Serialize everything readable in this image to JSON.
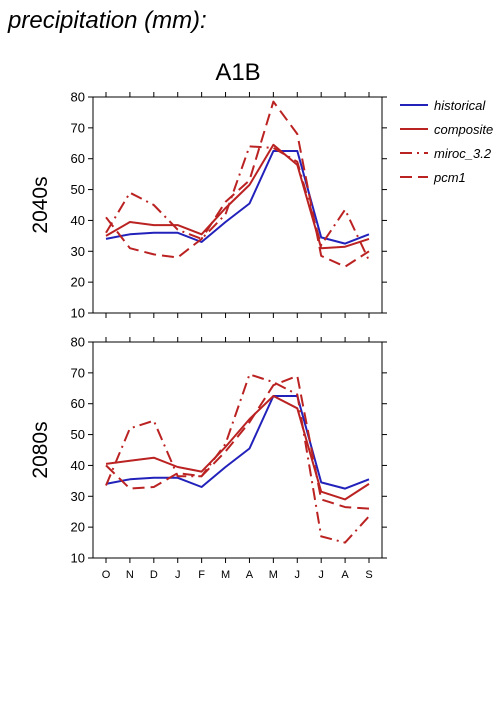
{
  "header": {
    "title": "precipitation (mm):",
    "scenario": "A1B"
  },
  "chart_data": {
    "type": "line",
    "categories": [
      "O",
      "N",
      "D",
      "J",
      "F",
      "M",
      "A",
      "M",
      "J",
      "J",
      "A",
      "S"
    ],
    "ylim": [
      10,
      80
    ],
    "yticks": [
      10,
      20,
      30,
      40,
      50,
      60,
      70,
      80
    ],
    "legend_position": "right",
    "styles": {
      "historical": {
        "color": "#2222bb",
        "dash": "none"
      },
      "composite": {
        "color": "#bb2222",
        "dash": "none"
      },
      "miroc_3.2": {
        "color": "#bb2222",
        "dash": "12 5 2 5"
      },
      "pcm1": {
        "color": "#bb2222",
        "dash": "12 6"
      }
    },
    "legend": [
      {
        "key": "historical",
        "label": "historical"
      },
      {
        "key": "composite",
        "label": "composite"
      },
      {
        "key": "miroc_3.2",
        "label": "miroc_3.2"
      },
      {
        "key": "pcm1",
        "label": "pcm1"
      }
    ],
    "panels": [
      {
        "label": "2040s",
        "series": [
          {
            "key": "historical",
            "values": [
              34,
              35.5,
              36,
              36,
              33,
              39.5,
              45.5,
              62.5,
              62.5,
              34.5,
              32.5,
              35.5
            ]
          },
          {
            "key": "composite",
            "values": [
              35,
              39.5,
              38.5,
              38.5,
              35.5,
              44,
              51.5,
              64.5,
              58,
              31,
              31.5,
              34
            ]
          },
          {
            "key": "miroc_3.2",
            "values": [
              36,
              49,
              45,
              37,
              34,
              42,
              64,
              63.5,
              59,
              32,
              43.5,
              27
            ]
          },
          {
            "key": "pcm1",
            "values": [
              41,
              31,
              29,
              28,
              34,
              46,
              53,
              78.5,
              68,
              28.5,
              25,
              30
            ]
          }
        ]
      },
      {
        "label": "2080s",
        "series": [
          {
            "key": "historical",
            "values": [
              34,
              35.5,
              36,
              36,
              33,
              39.5,
              45.5,
              62.5,
              62.5,
              34.5,
              32.5,
              35.5
            ]
          },
          {
            "key": "composite",
            "values": [
              40.5,
              41.5,
              42.5,
              39.5,
              38,
              46,
              55,
              62.5,
              58.5,
              31.5,
              29,
              34
            ]
          },
          {
            "key": "miroc_3.2",
            "values": [
              33.5,
              52,
              54.5,
              36.5,
              36.5,
              47,
              69.5,
              67,
              63,
              17,
              15,
              23.5
            ]
          },
          {
            "key": "pcm1",
            "values": [
              40,
              32.5,
              33,
              37.5,
              36.5,
              44.5,
              54,
              66,
              69,
              29,
              26.5,
              26
            ]
          }
        ]
      }
    ]
  }
}
